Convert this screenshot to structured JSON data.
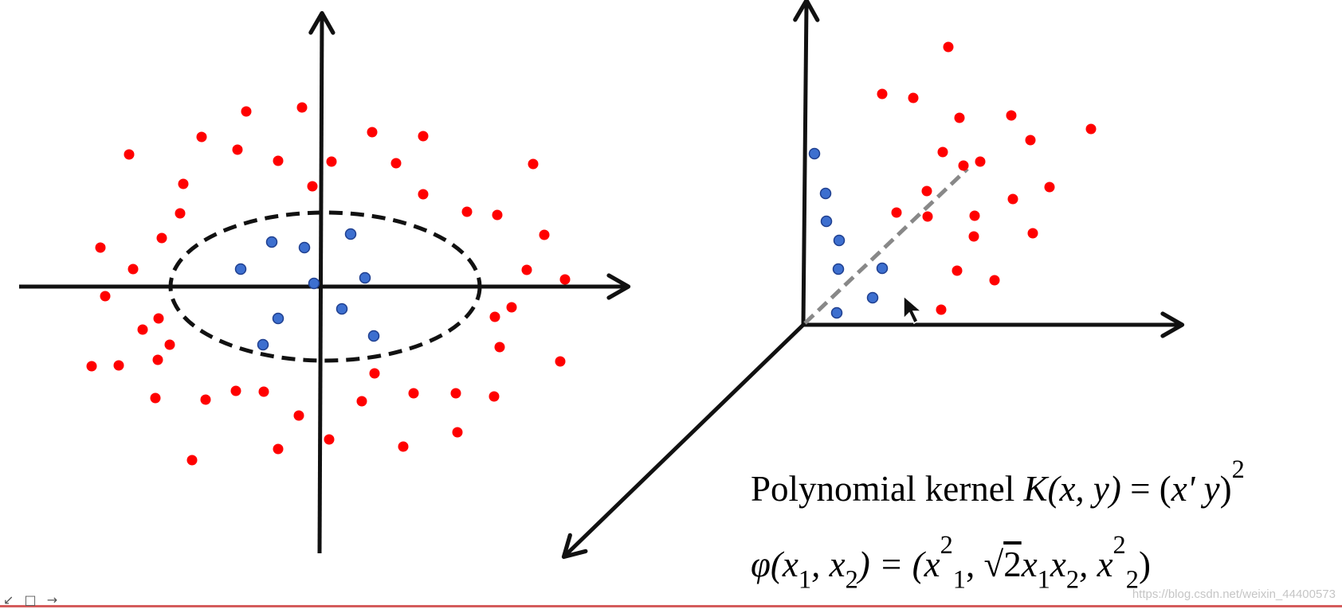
{
  "formulas": {
    "kernel_text": "Polynomial kernel",
    "kernel_lhs": "K",
    "kernel_args": "(x, y)",
    "kernel_eq": " = (",
    "kernel_rhs": "x' y",
    "kernel_close": ")",
    "kernel_exp": "2",
    "phi_lhs": "φ",
    "phi_args_open": "(x",
    "phi_sub1": "1",
    "phi_comma": ", x",
    "phi_sub2": "2",
    "phi_eq": ") = (x",
    "phi_t1_exp": "2",
    "phi_t1_sub": "1",
    "phi_sep1": ", ",
    "phi_sqrt": "√",
    "phi_sqrt_arg": "2",
    "phi_mid": "x",
    "phi_mid_sub1": "1",
    "phi_mid_x2": "x",
    "phi_mid_sub2": "2",
    "phi_sep2": ", x",
    "phi_t3_exp": "2",
    "phi_t3_sub": "2",
    "phi_close": ")"
  },
  "watermark": "https://blog.csdn.net/weixin_44400573",
  "toolbar_icons": "↙ □ →",
  "colors": {
    "outer_points": "#ff0000",
    "inner_points": "#3d6fcf",
    "inner_points_stroke": "#1f3f8f",
    "axes": "#111111",
    "boundary": "#111111",
    "plane_line": "#888888"
  },
  "left_plot": {
    "outer_points": [
      [
        309,
        140
      ],
      [
        379,
        135
      ],
      [
        162,
        194
      ],
      [
        253,
        172
      ],
      [
        298,
        188
      ],
      [
        349,
        202
      ],
      [
        416,
        203
      ],
      [
        467,
        166
      ],
      [
        531,
        171
      ],
      [
        497,
        205
      ],
      [
        669,
        206
      ],
      [
        230,
        231
      ],
      [
        392,
        234
      ],
      [
        531,
        244
      ],
      [
        586,
        266
      ],
      [
        624,
        270
      ],
      [
        226,
        268
      ],
      [
        683,
        295
      ],
      [
        203,
        299
      ],
      [
        126,
        311
      ],
      [
        167,
        338
      ],
      [
        661,
        339
      ],
      [
        709,
        351
      ],
      [
        132,
        372
      ],
      [
        642,
        386
      ],
      [
        199,
        400
      ],
      [
        621,
        398
      ],
      [
        179,
        414
      ],
      [
        213,
        433
      ],
      [
        627,
        436
      ],
      [
        115,
        460
      ],
      [
        149,
        459
      ],
      [
        198,
        452
      ],
      [
        703,
        454
      ],
      [
        470,
        469
      ],
      [
        195,
        500
      ],
      [
        258,
        502
      ],
      [
        296,
        491
      ],
      [
        331,
        492
      ],
      [
        454,
        504
      ],
      [
        519,
        494
      ],
      [
        572,
        494
      ],
      [
        620,
        498
      ],
      [
        375,
        522
      ],
      [
        413,
        552
      ],
      [
        349,
        564
      ],
      [
        506,
        561
      ],
      [
        574,
        543
      ],
      [
        241,
        578
      ]
    ],
    "inner_points": [
      [
        341,
        304
      ],
      [
        382,
        311
      ],
      [
        440,
        294
      ],
      [
        302,
        338
      ],
      [
        394,
        356
      ],
      [
        458,
        349
      ],
      [
        429,
        388
      ],
      [
        349,
        400
      ],
      [
        469,
        422
      ],
      [
        330,
        433
      ]
    ]
  },
  "right_plot": {
    "outer_points": [
      [
        1190,
        59
      ],
      [
        1107,
        118
      ],
      [
        1146,
        123
      ],
      [
        1204,
        148
      ],
      [
        1269,
        145
      ],
      [
        1369,
        162
      ],
      [
        1293,
        176
      ],
      [
        1183,
        191
      ],
      [
        1230,
        203
      ],
      [
        1209,
        208
      ],
      [
        1317,
        235
      ],
      [
        1163,
        240
      ],
      [
        1271,
        250
      ],
      [
        1125,
        267
      ],
      [
        1164,
        272
      ],
      [
        1223,
        271
      ],
      [
        1222,
        297
      ],
      [
        1296,
        293
      ],
      [
        1201,
        340
      ],
      [
        1248,
        352
      ],
      [
        1181,
        389
      ]
    ],
    "inner_points": [
      [
        1022,
        193
      ],
      [
        1036,
        243
      ],
      [
        1037,
        278
      ],
      [
        1053,
        302
      ],
      [
        1052,
        338
      ],
      [
        1107,
        337
      ],
      [
        1095,
        374
      ],
      [
        1050,
        393
      ]
    ]
  }
}
